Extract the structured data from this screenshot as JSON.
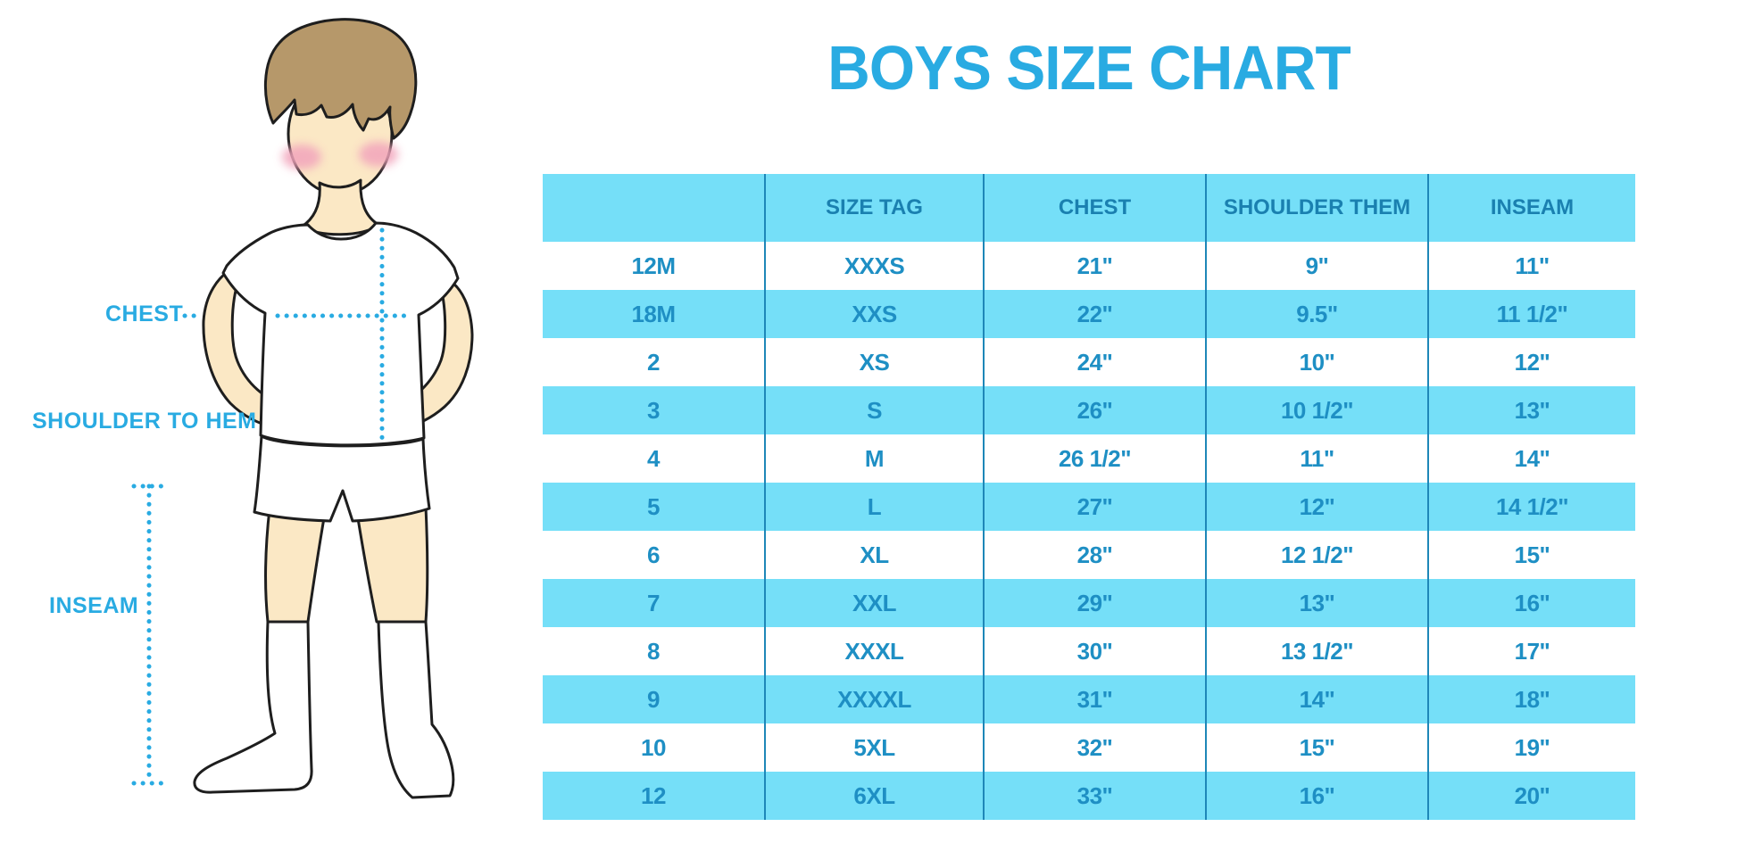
{
  "title": "BOYS SIZE CHART",
  "figure_labels": {
    "chest": "CHEST",
    "shoulder_to_hem": "SHOULDER TO HEM",
    "inseam": "INSEAM"
  },
  "colors": {
    "title_blue": "#29ABE2",
    "label_blue": "#29ABE2",
    "dotted_line_blue": "#29ABE2",
    "band_cyan": "#75DFF8",
    "row_white": "#FFFFFF",
    "header_text": "#1A80B0",
    "cell_text": "#1E8FC4",
    "column_separator": "#1E87B8",
    "skin": "#FBE8C5",
    "hair": "#B6986A",
    "blush": "#F2A4BC",
    "outline": "#1E1E1E"
  },
  "chart_data": {
    "type": "table",
    "title": "BOYS SIZE CHART",
    "columns": [
      "",
      "SIZE TAG",
      "CHEST",
      "SHOULDER THEM",
      "INSEAM"
    ],
    "rows": [
      [
        "12M",
        "XXXS",
        "21\"",
        "9\"",
        "11\""
      ],
      [
        "18M",
        "XXS",
        "22\"",
        "9.5\"",
        "11 1/2\""
      ],
      [
        "2",
        "XS",
        "24\"",
        "10\"",
        "12\""
      ],
      [
        "3",
        "S",
        "26\"",
        "10 1/2\"",
        "13\""
      ],
      [
        "4",
        "M",
        "26 1/2\"",
        "11\"",
        "14\""
      ],
      [
        "5",
        "L",
        "27\"",
        "12\"",
        "14 1/2\""
      ],
      [
        "6",
        "XL",
        "28\"",
        "12 1/2\"",
        "15\""
      ],
      [
        "7",
        "XXL",
        "29\"",
        "13\"",
        "16\""
      ],
      [
        "8",
        "XXXL",
        "30\"",
        "13 1/2\"",
        "17\""
      ],
      [
        "9",
        "XXXXL",
        "31\"",
        "14\"",
        "18\""
      ],
      [
        "10",
        "5XL",
        "32\"",
        "15\"",
        "19\""
      ],
      [
        "12",
        "6XL",
        "33\"",
        "16\"",
        "20\""
      ]
    ],
    "striping": "alternating white / cyan rows, cyan header",
    "notes": "measurement diagram at left shows chest, shoulder-to-hem and inseam dotted guide lines on a boy figure"
  }
}
